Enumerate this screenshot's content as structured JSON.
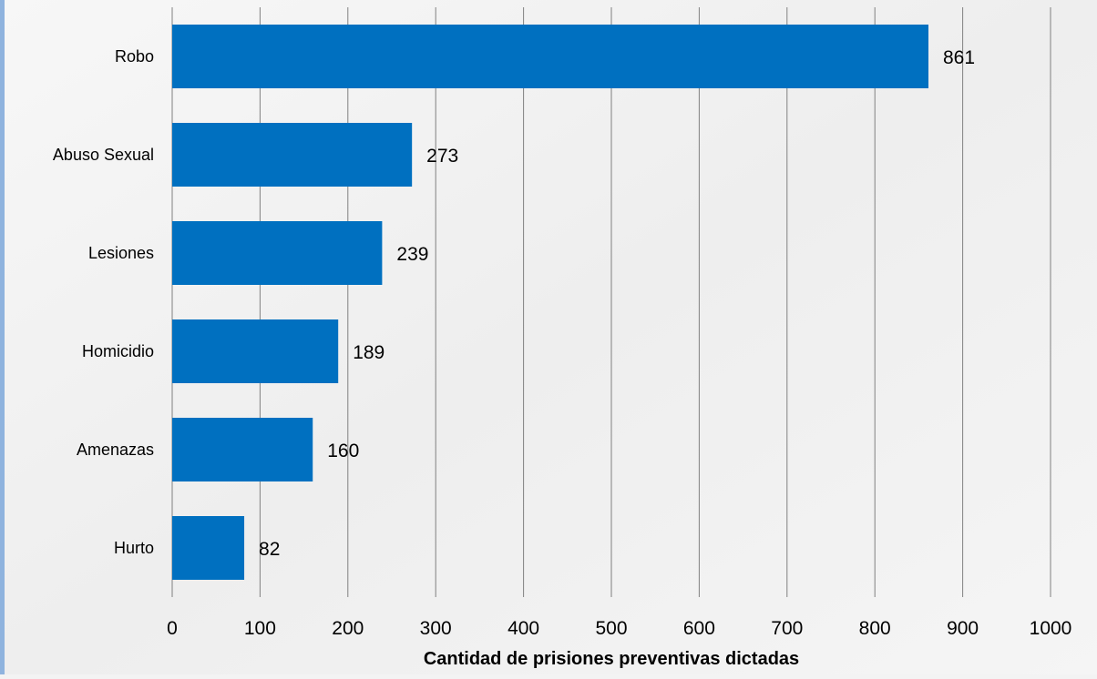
{
  "chart_data": {
    "type": "bar",
    "orientation": "horizontal",
    "categories": [
      "Robo",
      "Abuso Sexual",
      "Lesiones",
      "Homicidio",
      "Amenazas",
      "Hurto"
    ],
    "values": [
      861,
      273,
      239,
      189,
      160,
      82
    ],
    "title": "",
    "xlabel": "Cantidad de prisiones preventivas dictadas",
    "ylabel": "",
    "xlim": [
      0,
      1000
    ],
    "xticks": [
      0,
      100,
      200,
      300,
      400,
      500,
      600,
      700,
      800,
      900,
      1000
    ],
    "grid": "vertical",
    "data_labels": true,
    "legend": "none"
  },
  "colors": {
    "bar": "#0070c0",
    "grid": "#808080",
    "text": "#000000",
    "background": "#f3f3f3",
    "accent": "#8fb3de"
  }
}
